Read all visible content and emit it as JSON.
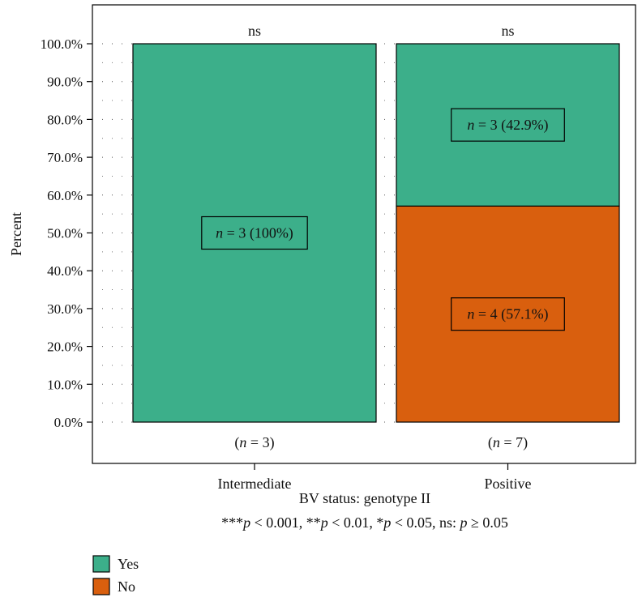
{
  "chart_data": {
    "type": "bar",
    "stacked": true,
    "percent": true,
    "categories": [
      "Intermediate",
      "Positive"
    ],
    "category_counts": [
      "(n = 3)",
      "(n = 7)"
    ],
    "series": [
      {
        "name": "No",
        "color": "#D95F0E",
        "values": [
          0,
          57.1
        ],
        "labels": [
          "",
          "n = 4 (57.1%)"
        ]
      },
      {
        "name": "Yes",
        "color": "#3CAF8A",
        "values": [
          100,
          42.9
        ],
        "labels": [
          "n = 3 (100%)",
          "n = 3 (42.9%)"
        ]
      }
    ],
    "significance": [
      "ns",
      "ns"
    ],
    "xlabel": "BV status: genotype II",
    "ylabel": "Percent",
    "note": "***p < 0.001, **p < 0.01, *p < 0.05,  ns: p ≥ 0.05",
    "ylim": [
      0,
      100
    ],
    "yticks": [
      "0.0%",
      "10.0%",
      "20.0%",
      "30.0%",
      "40.0%",
      "50.0%",
      "60.0%",
      "70.0%",
      "80.0%",
      "90.0%",
      "100.0%"
    ],
    "grid": "dotted",
    "legend": {
      "position": "bottom-left",
      "entries": [
        "Yes",
        "No"
      ]
    }
  }
}
